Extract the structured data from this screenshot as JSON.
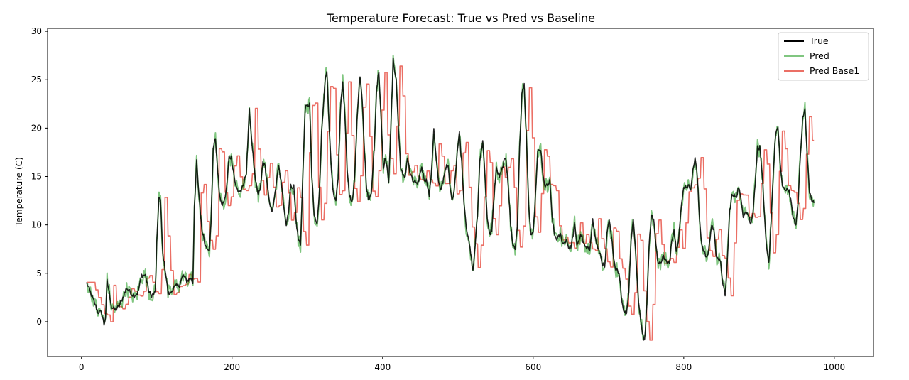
{
  "chart_data": {
    "type": "line",
    "title": "Temperature Forecast: True vs Pred vs Baseline",
    "xlabel": "",
    "ylabel": "Temperature (C)",
    "xlim": [
      -45,
      1052
    ],
    "ylim": [
      -3.6,
      30.3
    ],
    "x_ticks": [
      0,
      200,
      400,
      600,
      800,
      1000
    ],
    "y_ticks": [
      0,
      5,
      10,
      15,
      20,
      25,
      30
    ],
    "grid": false,
    "legend_position": "top-right",
    "colors": {
      "True": "#000000",
      "Pred": "#2ca02c",
      "Pred Base1": "#e8564a"
    },
    "keypoints": [
      [
        7,
        4.0
      ],
      [
        12,
        3.0
      ],
      [
        17,
        2.0
      ],
      [
        22,
        1.0
      ],
      [
        27,
        0.9
      ],
      [
        30,
        -0.3
      ],
      [
        32,
        0.5
      ],
      [
        34,
        4.2
      ],
      [
        37,
        3.0
      ],
      [
        40,
        1.5
      ],
      [
        45,
        1.2
      ],
      [
        50,
        1.6
      ],
      [
        55,
        2.5
      ],
      [
        60,
        3.5
      ],
      [
        65,
        3.0
      ],
      [
        70,
        2.7
      ],
      [
        75,
        3.0
      ],
      [
        80,
        4.8
      ],
      [
        85,
        4.8
      ],
      [
        90,
        3.0
      ],
      [
        93,
        2.7
      ],
      [
        98,
        3.0
      ],
      [
        100,
        8.0
      ],
      [
        103,
        13.0
      ],
      [
        105,
        12.5
      ],
      [
        108,
        7.0
      ],
      [
        112,
        5.0
      ],
      [
        115,
        2.9
      ],
      [
        118,
        2.9
      ],
      [
        122,
        3.5
      ],
      [
        130,
        3.8
      ],
      [
        135,
        4.8
      ],
      [
        140,
        4.2
      ],
      [
        145,
        4.5
      ],
      [
        148,
        4.0
      ],
      [
        150,
        12.0
      ],
      [
        153,
        16.5
      ],
      [
        156,
        13.0
      ],
      [
        160,
        9.5
      ],
      [
        165,
        7.8
      ],
      [
        170,
        7.5
      ],
      [
        172,
        10.0
      ],
      [
        175,
        18.0
      ],
      [
        178,
        19.0
      ],
      [
        180,
        16.5
      ],
      [
        183,
        13.5
      ],
      [
        186,
        12.0
      ],
      [
        190,
        12.5
      ],
      [
        193,
        14.0
      ],
      [
        196,
        17.0
      ],
      [
        199,
        17.0
      ],
      [
        202,
        15.5
      ],
      [
        205,
        14.0
      ],
      [
        208,
        13.5
      ],
      [
        212,
        13.5
      ],
      [
        215,
        14.0
      ],
      [
        219,
        15.5
      ],
      [
        223,
        21.8
      ],
      [
        227,
        18.0
      ],
      [
        231,
        14.5
      ],
      [
        235,
        13.0
      ],
      [
        238,
        14.0
      ],
      [
        241,
        16.5
      ],
      [
        244,
        16.0
      ],
      [
        247,
        14.0
      ],
      [
        250,
        12.0
      ],
      [
        253,
        11.5
      ],
      [
        256,
        12.5
      ],
      [
        259,
        14.5
      ],
      [
        262,
        16.0
      ],
      [
        265,
        14.5
      ],
      [
        268,
        12.5
      ],
      [
        272,
        10.0
      ],
      [
        275,
        11.5
      ],
      [
        278,
        14.0
      ],
      [
        282,
        14.0
      ],
      [
        285,
        10.5
      ],
      [
        288,
        8.5
      ],
      [
        291,
        8.0
      ],
      [
        294,
        15.0
      ],
      [
        297,
        22.0
      ],
      [
        300,
        22.3
      ],
      [
        303,
        22.5
      ],
      [
        306,
        15.0
      ],
      [
        309,
        11.0
      ],
      [
        313,
        10.0
      ],
      [
        316,
        13.5
      ],
      [
        319,
        19.5
      ],
      [
        323,
        24.5
      ],
      [
        326,
        25.8
      ],
      [
        329,
        20.0
      ],
      [
        332,
        15.5
      ],
      [
        335,
        13.0
      ],
      [
        338,
        12.5
      ],
      [
        341,
        15.0
      ],
      [
        344,
        22.0
      ],
      [
        347,
        24.8
      ],
      [
        350,
        21.0
      ],
      [
        353,
        15.5
      ],
      [
        356,
        13.0
      ],
      [
        360,
        12.5
      ],
      [
        363,
        15.0
      ],
      [
        366,
        21.0
      ],
      [
        370,
        25.5
      ],
      [
        373,
        23.0
      ],
      [
        376,
        17.5
      ],
      [
        379,
        13.5
      ],
      [
        382,
        12.5
      ],
      [
        385,
        13.5
      ],
      [
        389,
        18.0
      ],
      [
        392,
        24.0
      ],
      [
        395,
        26.0
      ],
      [
        398,
        21.0
      ],
      [
        401,
        16.0
      ],
      [
        404,
        17.0
      ],
      [
        408,
        14.5
      ],
      [
        411,
        20.0
      ],
      [
        414,
        27.0
      ],
      [
        418,
        25.0
      ],
      [
        421,
        20.0
      ],
      [
        424,
        16.0
      ],
      [
        427,
        15.0
      ],
      [
        430,
        15.0
      ],
      [
        433,
        17.0
      ],
      [
        436,
        15.5
      ],
      [
        440,
        14.5
      ],
      [
        443,
        14.5
      ],
      [
        446,
        14.0
      ],
      [
        449,
        15.0
      ],
      [
        452,
        16.0
      ],
      [
        455,
        14.8
      ],
      [
        459,
        14.5
      ],
      [
        462,
        13.0
      ],
      [
        465,
        15.5
      ],
      [
        468,
        20.0
      ],
      [
        471,
        17.0
      ],
      [
        474,
        14.5
      ],
      [
        477,
        13.5
      ],
      [
        480,
        14.5
      ],
      [
        484,
        16.0
      ],
      [
        487,
        16.0
      ],
      [
        490,
        13.5
      ],
      [
        493,
        12.5
      ],
      [
        496,
        14.5
      ],
      [
        499,
        17.5
      ],
      [
        502,
        19.5
      ],
      [
        505,
        16.5
      ],
      [
        508,
        12.5
      ],
      [
        511,
        10.0
      ],
      [
        514,
        8.5
      ],
      [
        517,
        7.0
      ],
      [
        520,
        5.2
      ],
      [
        523,
        8.0
      ],
      [
        526,
        11.0
      ],
      [
        529,
        16.5
      ],
      [
        533,
        18.8
      ],
      [
        536,
        15.0
      ],
      [
        539,
        10.5
      ],
      [
        542,
        9.0
      ],
      [
        545,
        9.5
      ],
      [
        548,
        13.0
      ],
      [
        551,
        15.8
      ],
      [
        555,
        15.0
      ],
      [
        558,
        15.5
      ],
      [
        561,
        16.5
      ],
      [
        564,
        16.8
      ],
      [
        567,
        14.0
      ],
      [
        570,
        10.0
      ],
      [
        573,
        8.0
      ],
      [
        576,
        7.5
      ],
      [
        579,
        10.0
      ],
      [
        582,
        18.0
      ],
      [
        585,
        23.5
      ],
      [
        588,
        24.5
      ],
      [
        591,
        19.0
      ],
      [
        594,
        12.0
      ],
      [
        597,
        9.0
      ],
      [
        600,
        9.0
      ],
      [
        603,
        13.0
      ],
      [
        606,
        17.5
      ],
      [
        610,
        17.8
      ],
      [
        613,
        15.0
      ],
      [
        616,
        14.0
      ],
      [
        619,
        14.0
      ],
      [
        622,
        14.5
      ],
      [
        625,
        11.0
      ],
      [
        628,
        9.0
      ],
      [
        632,
        8.5
      ],
      [
        636,
        9.0
      ],
      [
        640,
        8.0
      ],
      [
        644,
        8.5
      ],
      [
        648,
        7.5
      ],
      [
        651,
        8.0
      ],
      [
        655,
        10.0
      ],
      [
        658,
        8.0
      ],
      [
        661,
        8.5
      ],
      [
        664,
        9.0
      ],
      [
        667,
        8.0
      ],
      [
        671,
        7.5
      ],
      [
        675,
        7.5
      ],
      [
        679,
        10.5
      ],
      [
        683,
        8.5
      ],
      [
        686,
        7.5
      ],
      [
        689,
        7.0
      ],
      [
        692,
        6.0
      ],
      [
        695,
        5.5
      ],
      [
        698,
        9.0
      ],
      [
        701,
        10.5
      ],
      [
        705,
        8.0
      ],
      [
        709,
        5.5
      ],
      [
        712,
        5.5
      ],
      [
        715,
        4.5
      ],
      [
        718,
        2.0
      ],
      [
        721,
        1.0
      ],
      [
        724,
        1.0
      ],
      [
        727,
        3.0
      ],
      [
        730,
        8.5
      ],
      [
        733,
        10.5
      ],
      [
        736,
        7.5
      ],
      [
        739,
        3.0
      ],
      [
        742,
        0.5
      ],
      [
        745,
        -1.0
      ],
      [
        748,
        -2.0
      ],
      [
        751,
        2.0
      ],
      [
        754,
        8.0
      ],
      [
        757,
        11.0
      ],
      [
        760,
        10.5
      ],
      [
        763,
        8.0
      ],
      [
        766,
        6.0
      ],
      [
        769,
        6.0
      ],
      [
        772,
        6.8
      ],
      [
        775,
        6.5
      ],
      [
        778,
        6.0
      ],
      [
        781,
        6.0
      ],
      [
        784,
        8.5
      ],
      [
        787,
        9.5
      ],
      [
        790,
        7.5
      ],
      [
        793,
        8.5
      ],
      [
        797,
        12.0
      ],
      [
        800,
        14.0
      ],
      [
        803,
        14.0
      ],
      [
        806,
        14.0
      ],
      [
        809,
        13.8
      ],
      [
        812,
        15.5
      ],
      [
        815,
        17.0
      ],
      [
        818,
        15.0
      ],
      [
        821,
        10.5
      ],
      [
        824,
        8.0
      ],
      [
        828,
        7.0
      ],
      [
        831,
        6.5
      ],
      [
        834,
        8.0
      ],
      [
        837,
        10.0
      ],
      [
        840,
        9.5
      ],
      [
        843,
        7.0
      ],
      [
        846,
        6.5
      ],
      [
        849,
        6.0
      ],
      [
        852,
        4.0
      ],
      [
        855,
        2.5
      ],
      [
        858,
        6.5
      ],
      [
        861,
        11.5
      ],
      [
        864,
        13.0
      ],
      [
        867,
        13.0
      ],
      [
        870,
        13.0
      ],
      [
        873,
        14.0
      ],
      [
        876,
        12.5
      ],
      [
        879,
        11.0
      ],
      [
        882,
        11.5
      ],
      [
        886,
        11.0
      ],
      [
        889,
        10.0
      ],
      [
        892,
        11.5
      ],
      [
        895,
        14.5
      ],
      [
        898,
        18.0
      ],
      [
        901,
        18.0
      ],
      [
        904,
        15.5
      ],
      [
        907,
        11.0
      ],
      [
        910,
        7.5
      ],
      [
        913,
        6.0
      ],
      [
        916,
        10.5
      ],
      [
        919,
        15.5
      ],
      [
        922,
        19.5
      ],
      [
        925,
        20.0
      ],
      [
        928,
        16.5
      ],
      [
        931,
        14.0
      ],
      [
        934,
        13.5
      ],
      [
        937,
        13.8
      ],
      [
        940,
        13.5
      ],
      [
        943,
        12.0
      ],
      [
        946,
        10.5
      ],
      [
        949,
        10.0
      ],
      [
        952,
        12.5
      ],
      [
        955,
        17.5
      ],
      [
        958,
        21.0
      ],
      [
        961,
        22.0
      ],
      [
        964,
        17.0
      ],
      [
        967,
        13.5
      ],
      [
        970,
        12.5
      ],
      [
        973,
        12.2
      ]
    ],
    "pred_noise": 0.75,
    "baseline_lag": 8,
    "series": [
      {
        "name": "True",
        "color": "#000000"
      },
      {
        "name": "Pred",
        "color": "#2ca02c"
      },
      {
        "name": "Pred Base1",
        "color": "#e8564a"
      }
    ]
  },
  "legend": {
    "items": [
      {
        "label": "True"
      },
      {
        "label": "Pred"
      },
      {
        "label": "Pred Base1"
      }
    ]
  }
}
